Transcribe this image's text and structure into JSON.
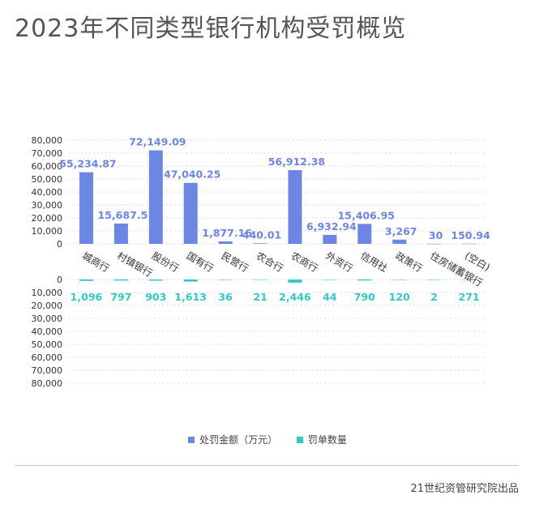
{
  "title": "2023年不同类型银行机构受罚概览",
  "source": "21世纪资管研究院出品",
  "colors": {
    "amount": "#6c86e4",
    "count": "#32c8c8",
    "grid": "#d8d8d8",
    "axis_text": "#333333"
  },
  "chart_data": {
    "type": "bar",
    "categories": [
      "城商行",
      "村镇银行",
      "股份行",
      "国有行",
      "民营行",
      "农合行",
      "农商行",
      "外资行",
      "信用社",
      "政策行",
      "住房储蓄银行",
      "(空白)"
    ],
    "series": [
      {
        "name": "处罚金额（万元）",
        "values": [
          55234.87,
          15687.5,
          72149.09,
          47040.25,
          1877.16,
          440.01,
          56912.38,
          6932.94,
          15406.95,
          3267,
          30,
          150.94
        ],
        "data_labels": [
          "55,234.87",
          "15,687.5",
          "72,149.09",
          "47,040.25",
          "1,877.16",
          "440.01",
          "56,912.38",
          "6,932.94",
          "15,406.95",
          "3,267",
          "30",
          "150.94"
        ]
      },
      {
        "name": "罚单数量",
        "values": [
          1096,
          797,
          903,
          1613,
          36,
          21,
          2446,
          44,
          790,
          120,
          2,
          271
        ],
        "data_labels": [
          "1,096",
          "797",
          "903",
          "1,613",
          "36",
          "21",
          "2,446",
          "44",
          "790",
          "120",
          "2",
          "271"
        ]
      }
    ],
    "top_axis": {
      "ylim": [
        0,
        80000
      ],
      "ticks": [
        "80,000",
        "70,000",
        "60,000",
        "50,000",
        "40,000",
        "30,000",
        "20,000",
        "10,000",
        "0"
      ]
    },
    "bottom_axis": {
      "ylim": [
        0,
        80000
      ],
      "inverted": true,
      "ticks": [
        "0",
        "10,000",
        "20,000",
        "30,000",
        "40,000",
        "50,000",
        "60,000",
        "70,000",
        "80,000"
      ]
    },
    "grid": true,
    "legend": "bottom-center"
  }
}
